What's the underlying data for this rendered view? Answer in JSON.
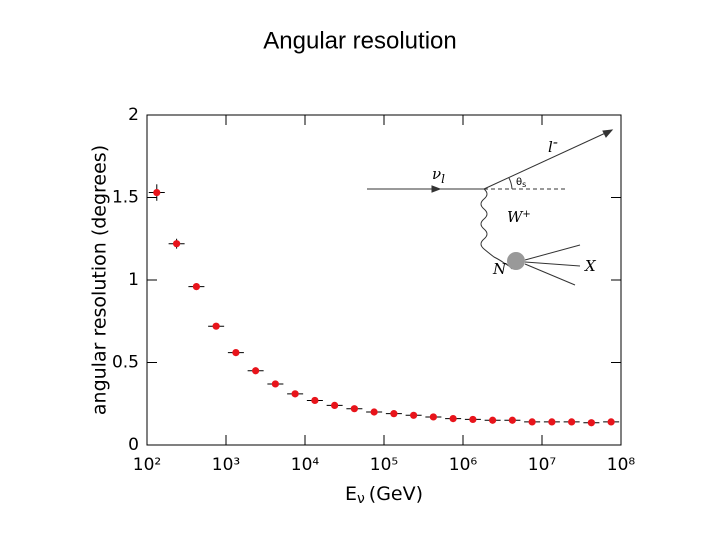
{
  "chart_data": {
    "type": "scatter",
    "title": "Angular resolution",
    "ylabel": "angular resolution (degrees)",
    "xlabel": {
      "main": "E",
      "sub": "ν",
      "unit": "(GeV)"
    },
    "log_x": true,
    "xlim": [
      100,
      100000000
    ],
    "xticks": [
      {
        "value": 100,
        "label": "10²"
      },
      {
        "value": 1000,
        "label": "10³"
      },
      {
        "value": 10000,
        "label": "10⁴"
      },
      {
        "value": 100000,
        "label": "10⁵"
      },
      {
        "value": 1000000,
        "label": "10⁶"
      },
      {
        "value": 10000000,
        "label": "10⁷"
      },
      {
        "value": 100000000,
        "label": "10⁸"
      }
    ],
    "ylim": [
      0,
      2
    ],
    "yticks": [
      0,
      0.5,
      1,
      1.5,
      2
    ],
    "color": "#e8141b",
    "x": [
      133,
      237,
      422,
      750,
      1334,
      2371,
      4217,
      7499,
      13335,
      23714,
      42170,
      74989,
      133352,
      237137,
      421697,
      749894,
      1333521,
      2371374,
      4216965,
      7498942,
      13335214,
      23713737,
      42169650,
      74989421
    ],
    "values": [
      1.53,
      1.22,
      0.96,
      0.72,
      0.56,
      0.45,
      0.37,
      0.31,
      0.27,
      0.24,
      0.22,
      0.2,
      0.19,
      0.18,
      0.17,
      0.16,
      0.155,
      0.15,
      0.15,
      0.14,
      0.14,
      0.14,
      0.135,
      0.14
    ],
    "yerr": [
      0.05,
      0.03,
      0.02,
      0.01,
      0.01,
      0.01,
      0.01,
      0.01,
      0.01,
      0.01,
      0.01,
      0.01,
      0.01,
      0.01,
      0.01,
      0.01,
      0.01,
      0.01,
      0.01,
      0.01,
      0.01,
      0.01,
      0.01,
      0.01
    ],
    "annotations": {
      "nu": "ν",
      "nu_sub": "l",
      "lepton": "l",
      "lepton_sup": "-",
      "theta": "θ",
      "theta_sub": "s",
      "w": "W",
      "w_sup": "+",
      "n": "N",
      "x": "X"
    }
  }
}
